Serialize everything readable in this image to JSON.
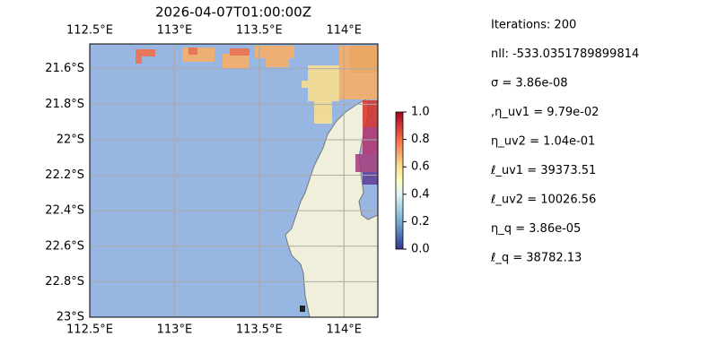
{
  "title": "2026-04-07T01:00:00Z",
  "map": {
    "lon_extent": [
      112.5,
      114.2
    ],
    "lat_extent": [
      -23.0,
      -21.46
    ],
    "lon_ticks": [
      {
        "value": 112.5,
        "label": "112.5°E"
      },
      {
        "value": 113,
        "label": "113°E"
      },
      {
        "value": 113.5,
        "label": "113.5°E"
      },
      {
        "value": 114,
        "label": "114°E"
      }
    ],
    "lat_ticks": [
      {
        "value": -21.6,
        "label": "21.6°S"
      },
      {
        "value": -21.8,
        "label": "21.8°S"
      },
      {
        "value": -22,
        "label": "22°S"
      },
      {
        "value": -22.2,
        "label": "22.2°S"
      },
      {
        "value": -22.4,
        "label": "22.4°S"
      },
      {
        "value": -22.6,
        "label": "22.6°S"
      },
      {
        "value": -22.8,
        "label": "22.8°S"
      },
      {
        "value": -23,
        "label": "23°S"
      }
    ]
  },
  "colorbar": {
    "range": [
      0,
      1
    ],
    "ticks": [
      {
        "value": 0,
        "label": "0.0"
      },
      0.2,
      0.4,
      0.6,
      0.8,
      {
        "value": 1,
        "label": "1.0"
      }
    ]
  },
  "stats": [
    "Iterations: 200",
    "nll: -533.0351789899814",
    "σ = 3.86e-08",
    ",η_uv1 = 9.79e-02",
    "η_uv2 = 1.04e-01",
    "ℓ_uv1 = 39373.51",
    "ℓ_uv2 = 10026.56",
    "η_q = 3.86e-05",
    "ℓ_q = 38782.13"
  ]
}
